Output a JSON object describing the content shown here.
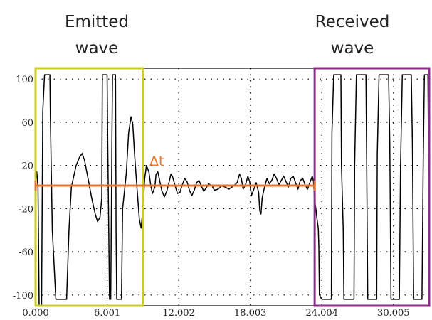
{
  "chart_data": {
    "type": "line",
    "xlim": [
      0,
      33.0
    ],
    "ylim": [
      -110,
      110
    ],
    "x_ticks": [
      "0.000",
      "6.001",
      "12.002",
      "18.003",
      "24.004",
      "30.005"
    ],
    "x_tick_values": [
      0,
      6.001,
      12.002,
      18.003,
      24.004,
      30.005
    ],
    "y_ticks": [
      "100",
      "60",
      "20",
      "-20",
      "-60",
      "-100"
    ],
    "y_tick_values": [
      100,
      60,
      20,
      -20,
      -60,
      -100
    ],
    "grid": "dotted",
    "series": [
      {
        "color": "#000000",
        "points": [
          [
            0.0,
            10
          ],
          [
            0.1,
            14
          ],
          [
            0.2,
            0
          ],
          [
            0.3,
            -110
          ],
          [
            0.5,
            -110
          ],
          [
            0.6,
            70
          ],
          [
            0.75,
            104
          ],
          [
            1.2,
            104
          ],
          [
            1.25,
            60
          ],
          [
            1.4,
            -40
          ],
          [
            1.7,
            -104
          ],
          [
            2.6,
            -104
          ],
          [
            2.8,
            -40
          ],
          [
            3.0,
            0
          ],
          [
            3.4,
            20
          ],
          [
            3.7,
            28
          ],
          [
            3.9,
            31
          ],
          [
            4.1,
            25
          ],
          [
            4.4,
            8
          ],
          [
            4.7,
            -10
          ],
          [
            5.0,
            -25
          ],
          [
            5.2,
            -32
          ],
          [
            5.4,
            -28
          ],
          [
            5.55,
            -10
          ],
          [
            5.6,
            104
          ],
          [
            6.0,
            104
          ],
          [
            6.05,
            40
          ],
          [
            6.2,
            -104
          ],
          [
            6.3,
            -104
          ],
          [
            6.4,
            40
          ],
          [
            6.45,
            104
          ],
          [
            6.7,
            104
          ],
          [
            6.75,
            -40
          ],
          [
            6.8,
            -104
          ],
          [
            7.2,
            -104
          ],
          [
            7.3,
            -20
          ],
          [
            7.6,
            12
          ],
          [
            7.8,
            50
          ],
          [
            8.0,
            65
          ],
          [
            8.15,
            58
          ],
          [
            8.3,
            30
          ],
          [
            8.5,
            0
          ],
          [
            8.7,
            -30
          ],
          [
            8.85,
            -38
          ],
          [
            9.0,
            -20
          ],
          [
            9.15,
            8
          ],
          [
            9.3,
            20
          ],
          [
            9.5,
            14
          ],
          [
            9.65,
            2
          ],
          [
            9.8,
            -6
          ],
          [
            10.0,
            0
          ],
          [
            10.1,
            12
          ],
          [
            10.25,
            14
          ],
          [
            10.4,
            6
          ],
          [
            10.6,
            -4
          ],
          [
            10.8,
            -9
          ],
          [
            11.0,
            -4
          ],
          [
            11.2,
            5
          ],
          [
            11.35,
            12
          ],
          [
            11.5,
            9
          ],
          [
            11.7,
            1
          ],
          [
            11.9,
            -6
          ],
          [
            12.1,
            -5
          ],
          [
            12.3,
            2
          ],
          [
            12.5,
            8
          ],
          [
            12.7,
            5
          ],
          [
            12.9,
            -3
          ],
          [
            13.1,
            -8
          ],
          [
            13.3,
            -3
          ],
          [
            13.5,
            4
          ],
          [
            13.7,
            6
          ],
          [
            13.9,
            1
          ],
          [
            14.1,
            -4
          ],
          [
            14.3,
            -1
          ],
          [
            14.5,
            3
          ],
          [
            14.8,
            1
          ],
          [
            15.0,
            -3
          ],
          [
            15.3,
            -2
          ],
          [
            15.6,
            1
          ],
          [
            15.9,
            0
          ],
          [
            16.2,
            -2
          ],
          [
            16.6,
            1
          ],
          [
            16.9,
            4
          ],
          [
            17.1,
            12
          ],
          [
            17.25,
            8
          ],
          [
            17.4,
            -2
          ],
          [
            17.6,
            2
          ],
          [
            17.8,
            10
          ],
          [
            17.95,
            5
          ],
          [
            18.1,
            -8
          ],
          [
            18.3,
            -2
          ],
          [
            18.5,
            4
          ],
          [
            18.7,
            -5
          ],
          [
            18.8,
            -22
          ],
          [
            18.9,
            -25
          ],
          [
            19.0,
            -10
          ],
          [
            19.2,
            0
          ],
          [
            19.4,
            8
          ],
          [
            19.6,
            3
          ],
          [
            19.8,
            6
          ],
          [
            20.0,
            12
          ],
          [
            20.2,
            8
          ],
          [
            20.4,
            2
          ],
          [
            20.6,
            6
          ],
          [
            20.8,
            10
          ],
          [
            21.0,
            5
          ],
          [
            21.2,
            0
          ],
          [
            21.4,
            8
          ],
          [
            21.6,
            10
          ],
          [
            21.8,
            4
          ],
          [
            22.0,
            -2
          ],
          [
            22.2,
            6
          ],
          [
            22.4,
            8
          ],
          [
            22.6,
            2
          ],
          [
            22.8,
            -2
          ],
          [
            23.0,
            4
          ],
          [
            23.2,
            10
          ],
          [
            23.3,
            5
          ],
          [
            23.4,
            -12
          ],
          [
            23.5,
            -20
          ],
          [
            23.6,
            -30
          ],
          [
            23.7,
            -38
          ],
          [
            23.75,
            -55
          ],
          [
            23.8,
            -100
          ],
          [
            24.0,
            -104
          ],
          [
            24.8,
            -104
          ],
          [
            24.85,
            50
          ],
          [
            25.0,
            104
          ],
          [
            25.6,
            104
          ],
          [
            25.65,
            20
          ],
          [
            25.8,
            -40
          ],
          [
            25.85,
            -104
          ],
          [
            26.7,
            -104
          ],
          [
            26.75,
            20
          ],
          [
            26.9,
            104
          ],
          [
            27.7,
            104
          ],
          [
            27.75,
            40
          ],
          [
            27.85,
            -104
          ],
          [
            28.6,
            -104
          ],
          [
            28.65,
            30
          ],
          [
            28.8,
            104
          ],
          [
            29.6,
            104
          ],
          [
            29.7,
            40
          ],
          [
            29.8,
            -104
          ],
          [
            30.5,
            -104
          ],
          [
            30.6,
            20
          ],
          [
            30.75,
            104
          ],
          [
            31.5,
            104
          ],
          [
            31.6,
            40
          ],
          [
            31.7,
            -104
          ],
          [
            32.4,
            -104
          ],
          [
            32.5,
            20
          ],
          [
            32.6,
            104
          ],
          [
            32.9,
            104
          ],
          [
            33.0,
            -60
          ]
        ]
      }
    ],
    "annotations": {
      "emitted_label": [
        "Emitted",
        "wave"
      ],
      "received_label": [
        "Received",
        "wave"
      ],
      "delta_t_label": "Δt",
      "emitted_box": {
        "x0": 0.0,
        "x1": 9.0,
        "y0": -110,
        "y1": 110,
        "color": "#c9cc24"
      },
      "received_box": {
        "x0": 23.4,
        "x1": 33.0,
        "y0": -110,
        "y1": 110,
        "color": "#8b2d86"
      },
      "delta_t_arrow": {
        "x0": 0.0,
        "x1": 23.4,
        "y": 0,
        "color": "#e8742a"
      }
    }
  }
}
